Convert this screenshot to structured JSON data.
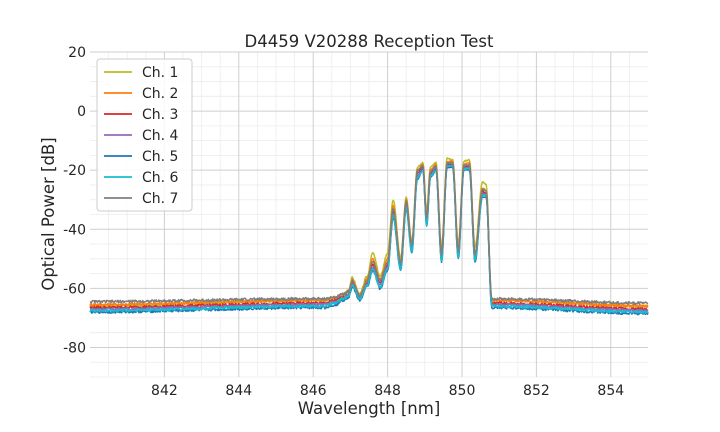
{
  "chart_data": {
    "type": "line",
    "title": "D4459 V20288 Reception Test",
    "xlabel": "Wavelength [nm]",
    "ylabel": "Optical Power [dB]",
    "xlim": [
      840.0,
      855.0
    ],
    "ylim": [
      -90,
      20
    ],
    "x_ticks": [
      842,
      844,
      846,
      848,
      850,
      852,
      854
    ],
    "y_ticks": [
      -80,
      -60,
      -40,
      -20,
      0,
      20
    ],
    "grid": true,
    "grid_minor": true,
    "legend_position": "upper-left",
    "series": [
      {
        "name": "Ch. 1",
        "color": "#bcbd22",
        "shift": -0.3,
        "floor": -66.0,
        "x": [
          840.0,
          846.3,
          846.6,
          846.8,
          846.95,
          847.05,
          847.25,
          847.45,
          847.6,
          847.8,
          848.0,
          848.15,
          848.35,
          848.5,
          848.65,
          848.8,
          848.95,
          849.05,
          849.15,
          849.3,
          849.45,
          849.6,
          849.75,
          849.9,
          850.05,
          850.2,
          850.35,
          850.55,
          850.65,
          850.8,
          855.0
        ],
        "y": [
          -66.0,
          -64.0,
          -63.5,
          -62.0,
          -60.5,
          -56.5,
          -62.0,
          -56.0,
          -48.0,
          -56.0,
          -48.0,
          -30.0,
          -50.0,
          -29.0,
          -44.0,
          -19.0,
          -17.5,
          -34.0,
          -19.0,
          -17.5,
          -46.0,
          -16.0,
          -16.5,
          -45.0,
          -17.0,
          -16.5,
          -46.0,
          -24.0,
          -25.0,
          -64.0,
          -66.0
        ]
      },
      {
        "name": "Ch. 2",
        "color": "#ff7f0e",
        "shift": -0.2,
        "floor": -65.5,
        "x": [
          840.0,
          846.3,
          846.6,
          846.8,
          846.95,
          847.05,
          847.25,
          847.45,
          847.6,
          847.8,
          848.0,
          848.15,
          848.35,
          848.5,
          848.65,
          848.8,
          848.95,
          849.05,
          849.15,
          849.3,
          849.45,
          849.6,
          849.75,
          849.9,
          850.05,
          850.2,
          850.35,
          850.55,
          850.65,
          850.8,
          855.0
        ],
        "y": [
          -65.5,
          -64.0,
          -63.0,
          -62.0,
          -61.0,
          -57.0,
          -62.5,
          -57.0,
          -50.0,
          -57.0,
          -50.0,
          -32.0,
          -51.0,
          -30.0,
          -45.0,
          -20.0,
          -18.0,
          -36.0,
          -20.0,
          -18.0,
          -48.0,
          -17.0,
          -17.0,
          -47.0,
          -18.0,
          -17.5,
          -48.0,
          -26.0,
          -27.0,
          -64.0,
          -66.0
        ]
      },
      {
        "name": "Ch. 3",
        "color": "#d62728",
        "shift": -0.1,
        "floor": -66.5,
        "x": [
          840.0,
          846.3,
          846.6,
          846.8,
          846.95,
          847.05,
          847.25,
          847.45,
          847.6,
          847.8,
          848.0,
          848.15,
          848.35,
          848.5,
          848.65,
          848.8,
          848.95,
          849.05,
          849.15,
          849.3,
          849.45,
          849.6,
          849.75,
          849.9,
          850.05,
          850.2,
          850.35,
          850.55,
          850.65,
          850.8,
          855.0
        ],
        "y": [
          -66.5,
          -65.0,
          -64.0,
          -63.0,
          -62.0,
          -58.0,
          -63.0,
          -58.0,
          -52.0,
          -58.0,
          -52.0,
          -34.0,
          -52.0,
          -31.0,
          -46.0,
          -21.0,
          -19.0,
          -37.0,
          -21.0,
          -19.0,
          -49.0,
          -18.0,
          -18.0,
          -48.0,
          -19.0,
          -18.5,
          -49.0,
          -27.0,
          -28.0,
          -65.0,
          -67.0
        ]
      },
      {
        "name": "Ch. 4",
        "color": "#9467bd",
        "shift": 0.0,
        "floor": -67.0,
        "x": [
          840.0,
          846.3,
          846.6,
          846.8,
          846.95,
          847.05,
          847.25,
          847.45,
          847.6,
          847.8,
          848.0,
          848.15,
          848.35,
          848.5,
          848.65,
          848.8,
          848.95,
          849.05,
          849.15,
          849.3,
          849.45,
          849.6,
          849.75,
          849.9,
          850.05,
          850.2,
          850.35,
          850.55,
          850.65,
          850.8,
          855.0
        ],
        "y": [
          -67.0,
          -65.5,
          -64.5,
          -63.5,
          -62.5,
          -59.0,
          -63.5,
          -59.0,
          -53.0,
          -59.0,
          -53.0,
          -35.0,
          -53.0,
          -32.0,
          -47.0,
          -22.0,
          -19.5,
          -38.0,
          -22.0,
          -19.0,
          -50.0,
          -18.5,
          -18.5,
          -49.0,
          -19.5,
          -19.0,
          -50.0,
          -28.0,
          -28.5,
          -65.5,
          -67.5
        ]
      },
      {
        "name": "Ch. 5",
        "color": "#1f77b4",
        "shift": 0.05,
        "floor": -68.0,
        "x": [
          840.0,
          846.3,
          846.6,
          846.8,
          846.95,
          847.05,
          847.25,
          847.45,
          847.6,
          847.8,
          848.0,
          848.15,
          848.35,
          848.5,
          848.65,
          848.8,
          848.95,
          849.05,
          849.15,
          849.3,
          849.45,
          849.6,
          849.75,
          849.9,
          850.05,
          850.2,
          850.35,
          850.55,
          850.65,
          850.8,
          855.0
        ],
        "y": [
          -68.0,
          -66.5,
          -65.5,
          -64.0,
          -63.0,
          -59.5,
          -64.0,
          -59.5,
          -54.0,
          -60.0,
          -54.0,
          -36.0,
          -54.0,
          -33.0,
          -48.0,
          -23.0,
          -20.0,
          -39.0,
          -22.5,
          -20.0,
          -51.0,
          -19.0,
          -19.0,
          -50.0,
          -20.0,
          -20.0,
          -51.0,
          -29.0,
          -29.0,
          -66.5,
          -68.5
        ]
      },
      {
        "name": "Ch. 6",
        "color": "#17becf",
        "shift": 0.1,
        "floor": -67.5,
        "x": [
          840.0,
          846.3,
          846.6,
          846.8,
          846.95,
          847.05,
          847.25,
          847.45,
          847.6,
          847.8,
          848.0,
          848.15,
          848.35,
          848.5,
          848.65,
          848.8,
          848.95,
          849.05,
          849.15,
          849.3,
          849.45,
          849.6,
          849.75,
          849.9,
          850.05,
          850.2,
          850.35,
          850.55,
          850.65,
          850.8,
          855.0
        ],
        "y": [
          -67.5,
          -66.0,
          -65.0,
          -63.5,
          -62.5,
          -59.0,
          -63.5,
          -59.0,
          -53.5,
          -59.5,
          -53.5,
          -35.5,
          -53.5,
          -32.5,
          -47.5,
          -22.5,
          -20.0,
          -38.5,
          -22.0,
          -20.0,
          -50.5,
          -18.5,
          -18.5,
          -49.5,
          -19.5,
          -19.5,
          -50.5,
          -28.5,
          -28.5,
          -66.0,
          -68.0
        ]
      },
      {
        "name": "Ch. 7",
        "color": "#7f7f7f",
        "shift": 0.0,
        "floor": -64.5,
        "x": [
          840.0,
          846.3,
          846.6,
          846.8,
          846.95,
          847.05,
          847.25,
          847.45,
          847.6,
          847.8,
          848.0,
          848.15,
          848.35,
          848.5,
          848.65,
          848.8,
          848.95,
          849.05,
          849.15,
          849.3,
          849.45,
          849.6,
          849.75,
          849.9,
          850.05,
          850.2,
          850.35,
          850.55,
          850.65,
          850.8,
          855.0
        ],
        "y": [
          -64.5,
          -63.5,
          -63.0,
          -62.0,
          -61.0,
          -57.5,
          -62.5,
          -57.5,
          -51.0,
          -57.5,
          -51.0,
          -33.0,
          -51.5,
          -30.5,
          -45.5,
          -20.0,
          -18.5,
          -36.5,
          -20.5,
          -18.5,
          -48.5,
          -17.5,
          -17.5,
          -47.5,
          -18.5,
          -18.0,
          -48.5,
          -26.5,
          -27.0,
          -63.5,
          -65.0
        ]
      }
    ]
  }
}
